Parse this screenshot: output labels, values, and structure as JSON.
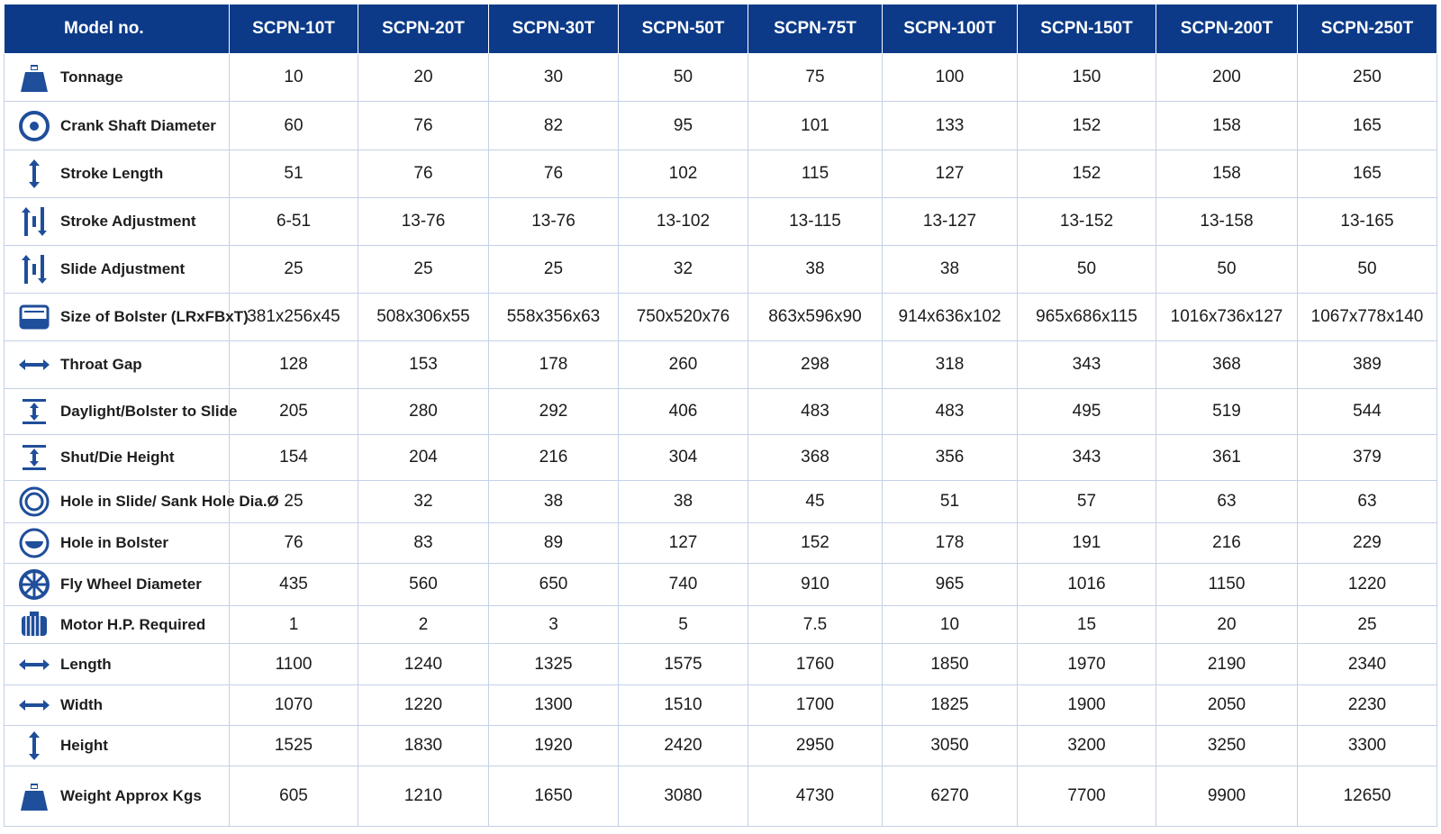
{
  "table": {
    "header": [
      "Model no.",
      "SCPN-10T",
      "SCPN-20T",
      "SCPN-30T",
      "SCPN-50T",
      "SCPN-75T",
      "SCPN-100T",
      "SCPN-150T",
      "SCPN-200T",
      "SCPN-250T"
    ],
    "rows": [
      [
        "Tonnage",
        "10",
        "20",
        "30",
        "50",
        "75",
        "100",
        "150",
        "200",
        "250"
      ],
      [
        "Crank Shaft Diameter",
        "60",
        "76",
        "82",
        "95",
        "101",
        "133",
        "152",
        "158",
        "165"
      ],
      [
        "Stroke Length",
        "51",
        "76",
        "76",
        "102",
        "115",
        "127",
        "152",
        "158",
        "165"
      ],
      [
        "Stroke Adjustment",
        "6-51",
        "13-76",
        "13-76",
        "13-102",
        "13-115",
        "13-127",
        "13-152",
        "13-158",
        "13-165"
      ],
      [
        "Slide Adjustment",
        "25",
        "25",
        "25",
        "32",
        "38",
        "38",
        "50",
        "50",
        "50"
      ],
      [
        "Size of Bolster (LRxFBxT)",
        "381x256x45",
        "508x306x55",
        "558x356x63",
        "750x520x76",
        "863x596x90",
        "914x636x102",
        "965x686x115",
        "1016x736x127",
        "1067x778x140"
      ],
      [
        "Throat Gap",
        "128",
        "153",
        "178",
        "260",
        "298",
        "318",
        "343",
        "368",
        "389"
      ],
      [
        "Daylight/Bolster to Slide",
        "205",
        "280",
        "292",
        "406",
        "483",
        "483",
        "495",
        "519",
        "544"
      ],
      [
        "Shut/Die Height",
        "154",
        "204",
        "216",
        "304",
        "368",
        "356",
        "343",
        "361",
        "379"
      ],
      [
        "Hole in Slide/ Sank Hole Dia.Ø",
        "25",
        "32",
        "38",
        "38",
        "45",
        "51",
        "57",
        "63",
        "63"
      ],
      [
        "Hole in Bolster",
        "76",
        "83",
        "89",
        "127",
        "152",
        "178",
        "191",
        "216",
        "229"
      ],
      [
        "Fly Wheel Diameter",
        "435",
        "560",
        "650",
        "740",
        "910",
        "965",
        "1016",
        "1150",
        "1220"
      ],
      [
        "Motor H.P. Required",
        "1",
        "2",
        "3",
        "5",
        "7.5",
        "10",
        "15",
        "20",
        "25"
      ],
      [
        "Length",
        "1100",
        "1240",
        "1325",
        "1575",
        "1760",
        "1850",
        "1970",
        "2190",
        "2340"
      ],
      [
        "Width",
        "1070",
        "1220",
        "1300",
        "1510",
        "1700",
        "1825",
        "1900",
        "2050",
        "2230"
      ],
      [
        "Height",
        "1525",
        "1830",
        "1920",
        "2420",
        "2950",
        "3050",
        "3200",
        "3250",
        "3300"
      ],
      [
        "Weight Approx Kgs",
        "605",
        "1210",
        "1650",
        "3080",
        "4730",
        "6270",
        "7700",
        "9900",
        "12650"
      ]
    ]
  }
}
